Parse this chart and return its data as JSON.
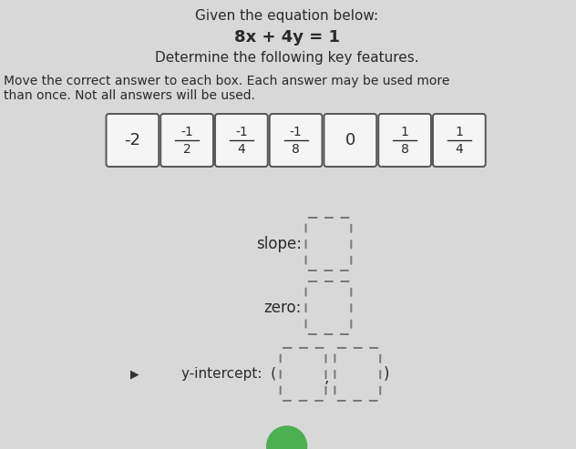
{
  "title_line1": "Given the equation below:",
  "title_line2": "8x + 4y = 1",
  "title_line3": "Determine the following key features.",
  "instruction1": "Move the correct answer to each box. Each answer may be used more",
  "instruction2": "than once. Not all answers will be used.",
  "answer_tops": [
    "-2",
    "-1",
    "-1",
    "-1",
    "0",
    "1",
    "1"
  ],
  "answer_bots": [
    "",
    "2",
    "4",
    "8",
    "",
    "8",
    "4"
  ],
  "bg_color": "#d8d8d8",
  "box_color": "#f5f5f5",
  "text_color": "#2a2a2a",
  "dashed_color": "#777777",
  "solid_edge": "#555555"
}
